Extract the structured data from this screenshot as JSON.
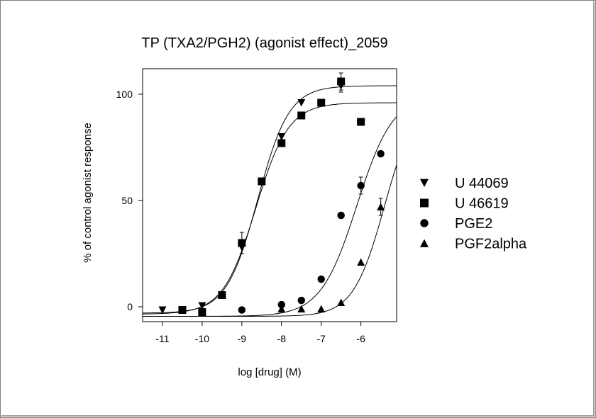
{
  "chart_data": {
    "type": "scatter",
    "title": "TP (TXA2/PGH2) (agonist effect)_2059",
    "xlabel": "log [drug] (M)",
    "ylabel": "% of control agonist response",
    "xlim": [
      -11.5,
      -5.1
    ],
    "ylim": [
      -7,
      112
    ],
    "xticks": [
      -11,
      -10,
      -9,
      -8,
      -7,
      -6
    ],
    "xtick_labels": [
      "-11",
      "-10",
      "-9",
      "-8",
      "-7",
      "-6"
    ],
    "yticks": [
      0,
      50,
      100
    ],
    "ytick_labels": [
      "0",
      "50",
      "100"
    ],
    "legend_position": "right",
    "series": [
      {
        "name": "U 44069",
        "marker": "triangle-down",
        "points": [
          {
            "x": -11,
            "y": -1.5
          },
          {
            "x": -10,
            "y": 0.5
          },
          {
            "x": -9,
            "y": 28
          },
          {
            "x": -8.5,
            "y": 59
          },
          {
            "x": -8,
            "y": 80
          },
          {
            "x": -7.5,
            "y": 96
          },
          {
            "x": -6.5,
            "y": 104,
            "err": 3
          }
        ],
        "fit": {
          "bottom": -3,
          "top": 104,
          "logec50": -8.6,
          "hill": 1.1
        }
      },
      {
        "name": "U 46619",
        "marker": "square",
        "points": [
          {
            "x": -10.5,
            "y": -1.5
          },
          {
            "x": -10,
            "y": -2.5
          },
          {
            "x": -9.5,
            "y": 5.5
          },
          {
            "x": -9,
            "y": 30,
            "err": 5
          },
          {
            "x": -8.5,
            "y": 59
          },
          {
            "x": -8,
            "y": 77
          },
          {
            "x": -7.5,
            "y": 90
          },
          {
            "x": -7,
            "y": 96
          },
          {
            "x": -6.5,
            "y": 106,
            "err": 4
          },
          {
            "x": -6,
            "y": 87
          }
        ],
        "fit": {
          "bottom": -3.5,
          "top": 96,
          "logec50": -8.65,
          "hill": 1.05
        }
      },
      {
        "name": "PGE2",
        "marker": "circle",
        "points": [
          {
            "x": -9,
            "y": -1.5
          },
          {
            "x": -8,
            "y": 1
          },
          {
            "x": -7.5,
            "y": 3
          },
          {
            "x": -7,
            "y": 13
          },
          {
            "x": -6.5,
            "y": 43
          },
          {
            "x": -6,
            "y": 57,
            "err": 4
          },
          {
            "x": -5.5,
            "y": 72
          }
        ],
        "fit": {
          "bottom": -4.5,
          "top": 100,
          "logec50": -6.1,
          "hill": 0.95
        }
      },
      {
        "name": "PGF2alpha",
        "marker": "triangle-up",
        "points": [
          {
            "x": -8,
            "y": -1
          },
          {
            "x": -7.5,
            "y": -1
          },
          {
            "x": -7,
            "y": -1
          },
          {
            "x": -6.5,
            "y": 2
          },
          {
            "x": -6,
            "y": 21
          },
          {
            "x": -5.5,
            "y": 47,
            "err": 4
          }
        ],
        "fit": {
          "bottom": -4.5,
          "top": 100,
          "logec50": -5.4,
          "hill": 1.1
        }
      }
    ]
  }
}
